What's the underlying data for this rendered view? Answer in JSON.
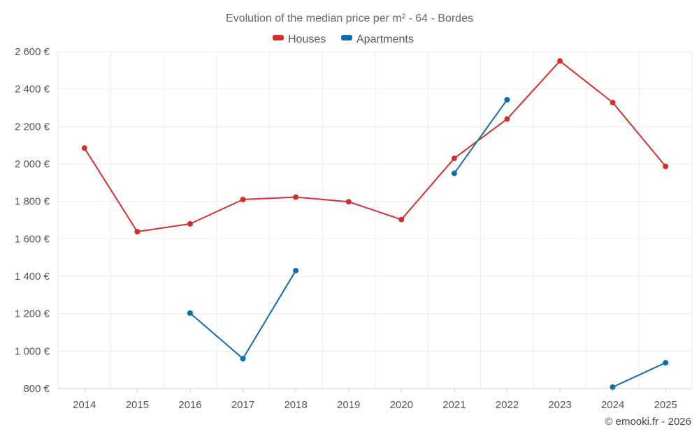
{
  "chart_data": {
    "type": "line",
    "title": "Evolution of the median price per m² - 64 - Bordes",
    "credit": "© emooki.fr - 2026",
    "x": [
      2014,
      2015,
      2016,
      2017,
      2018,
      2019,
      2020,
      2021,
      2022,
      2023,
      2024,
      2025
    ],
    "x_tick_labels": [
      "2014",
      "2015",
      "2016",
      "2017",
      "2018",
      "2019",
      "2020",
      "2021",
      "2022",
      "2023",
      "2024",
      "2025"
    ],
    "ylim": [
      800,
      2600
    ],
    "y_ticks": [
      800,
      1000,
      1200,
      1400,
      1600,
      1800,
      2000,
      2200,
      2400,
      2600
    ],
    "y_tick_labels": [
      "800 €",
      "1 000 €",
      "1 200 €",
      "1 400 €",
      "1 600 €",
      "1 800 €",
      "2 000 €",
      "2 200 €",
      "2 400 €",
      "2 600 €"
    ],
    "grid": true,
    "legend_position": "top-center",
    "series": [
      {
        "name": "Houses",
        "color": "#d32f2f",
        "values": [
          2085,
          1638,
          1680,
          1810,
          1823,
          1798,
          1703,
          2030,
          2240,
          2550,
          2328,
          1987
        ]
      },
      {
        "name": "Apartments",
        "color": "#0d6ea8",
        "values": [
          null,
          null,
          1203,
          960,
          1430,
          null,
          null,
          1950,
          2343,
          null,
          808,
          938
        ]
      }
    ]
  }
}
